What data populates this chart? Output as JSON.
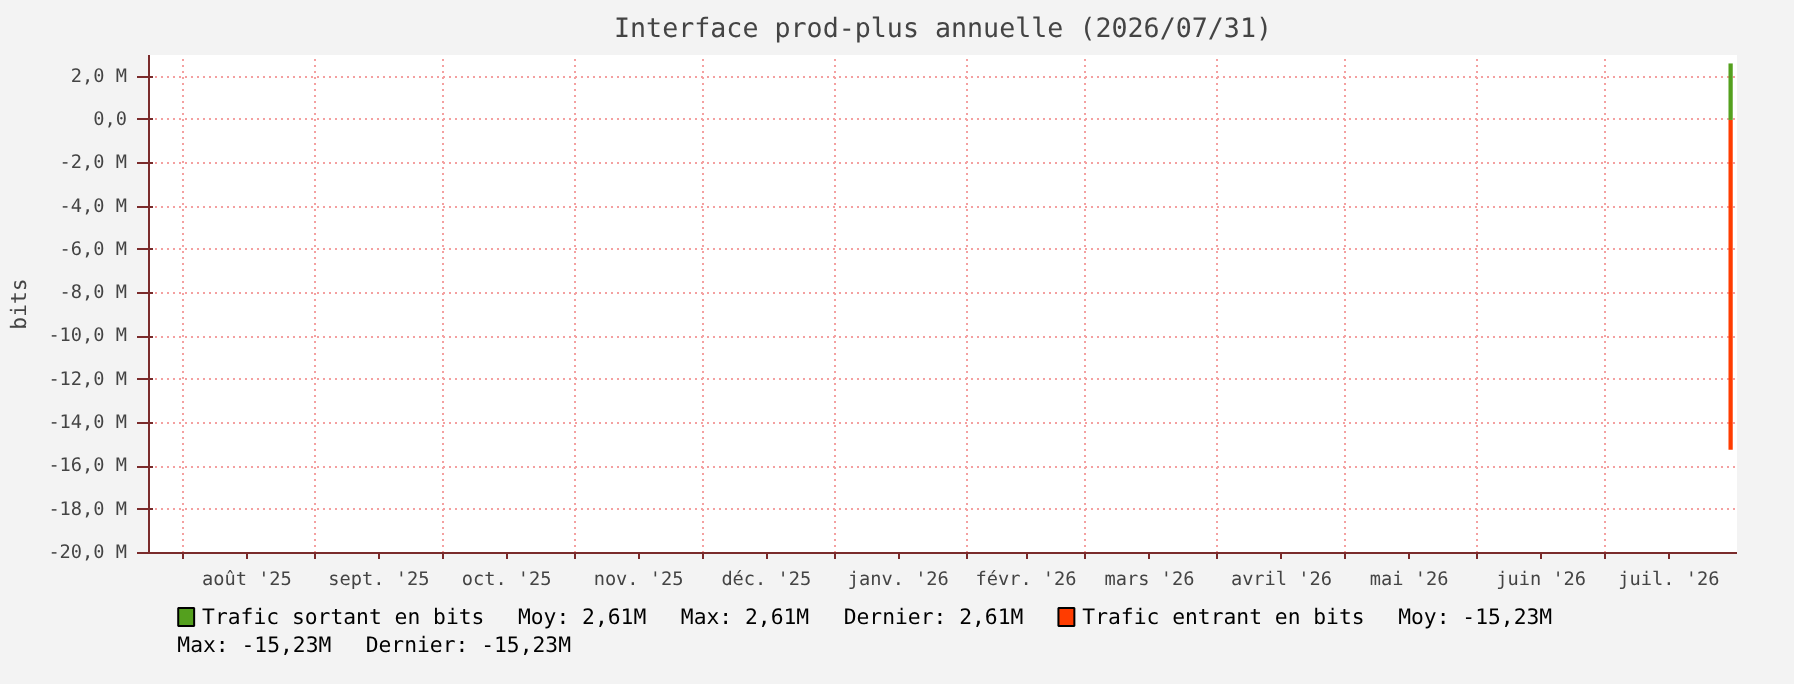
{
  "chart_data": {
    "type": "area",
    "title": "Interface prod-plus annuelle (2026/07/31)",
    "ylabel": "bits",
    "x": [
      "2026-07-30",
      "2026-07-31"
    ],
    "series": [
      {
        "name": "Trafic sortant en bits",
        "color": "#54a01e",
        "values": [
          2.61,
          2.61
        ]
      },
      {
        "name": "Trafic entrant en bits",
        "color": "#ff3c00",
        "values": [
          -15.23,
          -15.23
        ]
      }
    ],
    "annotations": [
      "Moy: 2,61M",
      "Max: 2,61M",
      "Dernier: 2,61M",
      "Moy: -15,23M",
      "Max: -15,23M",
      "Dernier: -15,23M"
    ],
    "xlim": [
      "2025-07-24",
      "2026-08-01"
    ],
    "xticks": [
      {
        "value": "2025-08-01",
        "label": null
      },
      {
        "value": "2025-08-16",
        "label": "août '25"
      },
      {
        "value": "2025-09-01",
        "label": null
      },
      {
        "value": "2025-09-16",
        "label": "sept. '25"
      },
      {
        "value": "2025-10-01",
        "label": null
      },
      {
        "value": "2025-10-16",
        "label": "oct. '25"
      },
      {
        "value": "2025-11-01",
        "label": null
      },
      {
        "value": "2025-11-16",
        "label": "nov. '25"
      },
      {
        "value": "2025-12-01",
        "label": null
      },
      {
        "value": "2025-12-16",
        "label": "déc. '25"
      },
      {
        "value": "2026-01-01",
        "label": null
      },
      {
        "value": "2026-01-16",
        "label": "janv. '26"
      },
      {
        "value": "2026-02-01",
        "label": null
      },
      {
        "value": "2026-02-15",
        "label": "févr. '26"
      },
      {
        "value": "2026-03-01",
        "label": null
      },
      {
        "value": "2026-03-16",
        "label": "mars '26"
      },
      {
        "value": "2026-04-01",
        "label": null
      },
      {
        "value": "2026-04-16",
        "label": "avril '26"
      },
      {
        "value": "2026-05-01",
        "label": null
      },
      {
        "value": "2026-05-16",
        "label": "mai '26"
      },
      {
        "value": "2026-06-01",
        "label": null
      },
      {
        "value": "2026-06-16",
        "label": "juin '26"
      },
      {
        "value": "2026-07-01",
        "label": null
      },
      {
        "value": "2026-07-16",
        "label": "juil. '26"
      }
    ],
    "ylim": [
      -20,
      3
    ],
    "yticks": [
      {
        "value": 2,
        "label": "2,0 M"
      },
      {
        "value": 0,
        "label": "0,0"
      },
      {
        "value": -2,
        "label": "-2,0 M"
      },
      {
        "value": -4,
        "label": "-4,0 M"
      },
      {
        "value": -6,
        "label": "-6,0 M"
      },
      {
        "value": -8,
        "label": "-8,0 M"
      },
      {
        "value": -10,
        "label": "-10,0 M"
      },
      {
        "value": -12,
        "label": "-12,0 M"
      },
      {
        "value": -14,
        "label": "-14,0 M"
      },
      {
        "value": -16,
        "label": "-16,0 M"
      },
      {
        "value": -18,
        "label": "-18,0 M"
      },
      {
        "value": -20,
        "label": "-20,0 M"
      }
    ],
    "grid": true,
    "legend": "bottom"
  }
}
